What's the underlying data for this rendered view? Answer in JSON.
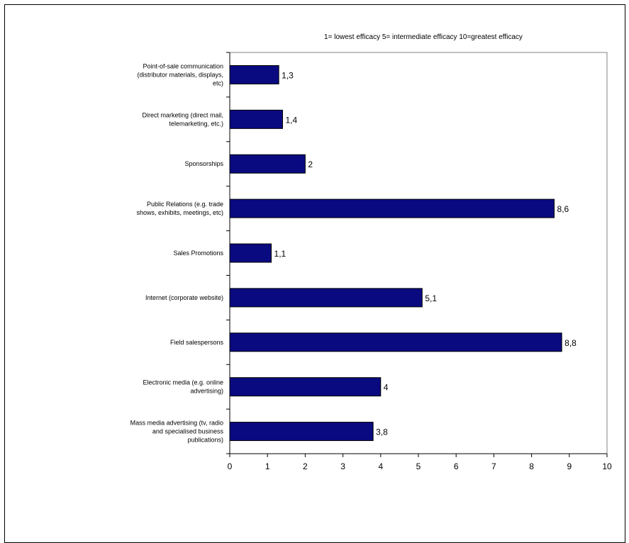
{
  "chart_data": {
    "type": "bar",
    "orientation": "horizontal",
    "title": "1= lowest efficacy 5= intermediate efficacy 10=greatest efficacy",
    "xlabel": "",
    "ylabel": "",
    "xlim": [
      0,
      10
    ],
    "x_ticks": [
      "0",
      "1",
      "2",
      "3",
      "4",
      "5",
      "6",
      "7",
      "8",
      "9",
      "10"
    ],
    "categories": [
      [
        "Point-of-sale communication",
        "(distributor materials, displays,",
        "etc)"
      ],
      [
        "Direct marketing (direct mail,",
        "telemarketing, etc.)"
      ],
      [
        "Sponsorships"
      ],
      [
        "Public Relations (e.g. trade",
        "shows, exhibits, meetings, etc)"
      ],
      [
        "Sales Promotions"
      ],
      [
        "Internet (corporate website)"
      ],
      [
        "Field salespersons"
      ],
      [
        "Electronic media (e.g. online",
        "advertising)"
      ],
      [
        "Mass media advertising (tv, radio",
        "and specialised business",
        "publications)"
      ]
    ],
    "values": [
      1.3,
      1.4,
      2,
      8.6,
      1.1,
      5.1,
      8.8,
      4,
      3.8
    ],
    "value_labels": [
      "1,3",
      "1,4",
      "2",
      "8,6",
      "1,1",
      "5,1",
      "8,8",
      "4",
      "3,8"
    ],
    "bar_color": "#0a0a80",
    "grid": false,
    "legend": "none"
  }
}
